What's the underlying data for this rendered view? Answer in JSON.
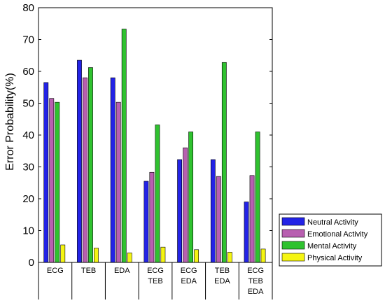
{
  "chart_data": {
    "type": "bar",
    "ylabel": "Error Probability(%)",
    "xlabel": "",
    "ylim": [
      0,
      80
    ],
    "yticks": [
      0,
      10,
      20,
      30,
      40,
      50,
      60,
      70,
      80
    ],
    "categories": [
      [
        "ECG"
      ],
      [
        "TEB"
      ],
      [
        "EDA"
      ],
      [
        "ECG",
        "TEB"
      ],
      [
        "ECG",
        "EDA"
      ],
      [
        "TEB",
        "EDA"
      ],
      [
        "ECG",
        "TEB",
        "EDA"
      ]
    ],
    "series": [
      {
        "name": "Neutral Activity",
        "color": "#2323e6",
        "values": [
          56.5,
          63.5,
          58.0,
          25.5,
          32.3,
          32.3,
          19.0
        ]
      },
      {
        "name": "Emotional Activity",
        "color": "#b85fb0",
        "values": [
          51.5,
          58.0,
          50.3,
          28.3,
          36.0,
          27.0,
          27.3
        ]
      },
      {
        "name": "Mental Activity",
        "color": "#2fc22f",
        "values": [
          50.3,
          61.2,
          73.3,
          43.2,
          41.0,
          62.8,
          41.0
        ]
      },
      {
        "name": "Physical Activity",
        "color": "#f5f512",
        "values": [
          5.5,
          4.5,
          3.0,
          4.8,
          4.0,
          3.2,
          4.2
        ]
      }
    ],
    "grid": false,
    "legend_position": "bottom-right"
  }
}
